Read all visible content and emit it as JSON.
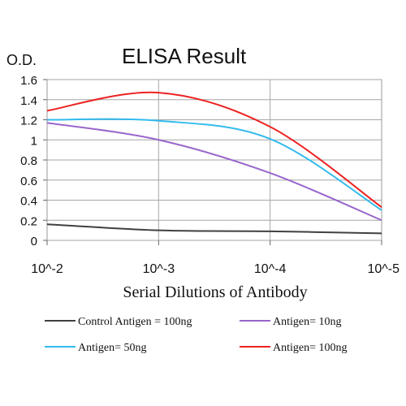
{
  "chart_data": {
    "type": "line",
    "title": "ELISA Result",
    "ylabel": "O.D.",
    "xlabel": "Serial Dilutions of Antibody",
    "categories": [
      "10^-2",
      "10^-3",
      "10^-4",
      "10^-5"
    ],
    "ylim": [
      0,
      1.6
    ],
    "yticks": [
      "0",
      "0.2",
      "0.4",
      "0.6",
      "0.8",
      "1",
      "1.2",
      "1.4",
      "1.6"
    ],
    "grid": true,
    "legend_position": "bottom",
    "series": [
      {
        "name": "Control Antigen = 100ng",
        "color": "#404040",
        "values": [
          0.16,
          0.1,
          0.09,
          0.07
        ]
      },
      {
        "name": "Antigen= 10ng",
        "color": "#9966cc",
        "values": [
          1.17,
          1.0,
          0.67,
          0.2
        ]
      },
      {
        "name": "Antigen= 50ng",
        "color": "#33bbee",
        "values": [
          1.2,
          1.19,
          1.01,
          0.3
        ]
      },
      {
        "name": "Antigen= 100ng",
        "color": "#ee2222",
        "values": [
          1.29,
          1.47,
          1.13,
          0.33
        ]
      }
    ]
  }
}
